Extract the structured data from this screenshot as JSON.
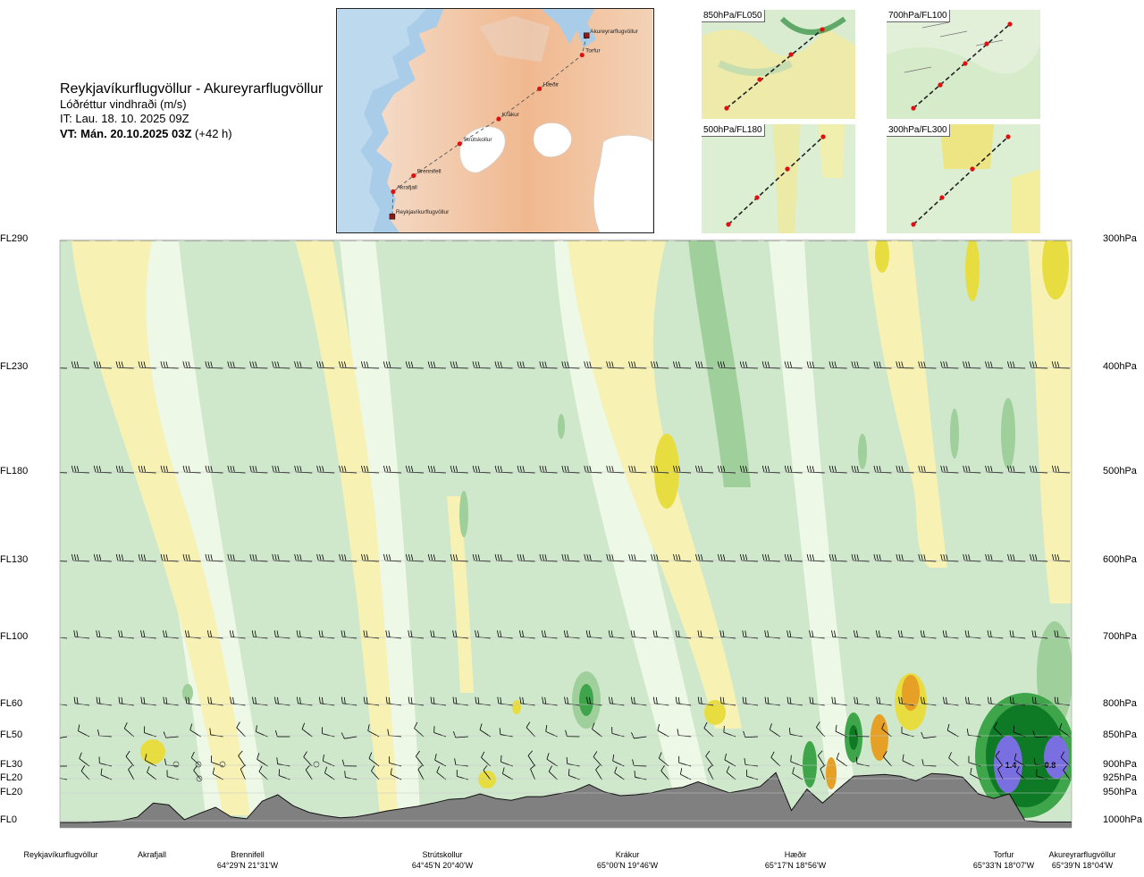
{
  "header": {
    "title": "Reykjavíkurflugvöllur - Akureyrarflugvöllur",
    "subtitle": "Lóðréttur vindhraði (m/s)",
    "issue_time": "IT: Lau. 18. 10. 2025 09Z",
    "valid_time_bold": "VT: Mán. 20.10.2025 03Z",
    "valid_time_offset": "(+42 h)"
  },
  "route_map": {
    "points": [
      {
        "name": "Akureyrarflugvöllur",
        "type": "airport"
      },
      {
        "name": "Torfur",
        "type": "waypoint"
      },
      {
        "name": "Hæðir",
        "type": "waypoint"
      },
      {
        "name": "Krákur",
        "type": "waypoint"
      },
      {
        "name": "Strútskollur",
        "type": "waypoint"
      },
      {
        "name": "Brennifell",
        "type": "waypoint"
      },
      {
        "name": "Akrafjall",
        "type": "waypoint"
      },
      {
        "name": "Reykjavíkurflugvöllur",
        "type": "airport"
      }
    ]
  },
  "thumbnails": [
    {
      "label": "850hPa/FL050"
    },
    {
      "label": "700hPa/FL100"
    },
    {
      "label": "500hPa/FL180"
    },
    {
      "label": "300hPa/FL300"
    }
  ],
  "colors": {
    "sink_strong": "#7a6fe0",
    "sink_dark_green": "#0e7a26",
    "sink_green": "#3fa54a",
    "sink_mid": "#9fcf9a",
    "sink_light": "#cfe8cc",
    "neutral": "#eef8e6",
    "rise_light": "#f7f1b4",
    "rise_yellow": "#e8dd40",
    "rise_orange": "#e5a025",
    "terrain": "#808080"
  },
  "chart_data": {
    "type": "heatmap",
    "title": "Lóðréttur vindhraði (m/s)",
    "y_levels_left": [
      "FL290",
      "FL230",
      "FL180",
      "FL130",
      "FL100",
      "FL60",
      "FL50",
      "FL30",
      "FL20",
      "FL20",
      "FL0"
    ],
    "y_levels_right": [
      "300hPa",
      "400hPa",
      "500hPa",
      "600hPa",
      "700hPa",
      "800hPa",
      "850hPa",
      "900hPa",
      "925hPa",
      "950hPa",
      "1000hPa"
    ],
    "pressure_hpa": [
      300,
      400,
      500,
      600,
      700,
      800,
      850,
      900,
      925,
      950,
      1000
    ],
    "x_stations": [
      {
        "name": "Reykjavíkurflugvöllur",
        "coord": ""
      },
      {
        "name": "Akrafjall",
        "coord": ""
      },
      {
        "name": "Brennifell",
        "coord": "64°29'N 21°31'W"
      },
      {
        "name": "Strútskollur",
        "coord": "64°45'N 20°40'W"
      },
      {
        "name": "Krákur",
        "coord": "65°00'N 19°46'W"
      },
      {
        "name": "Hæðir",
        "coord": "65°17'N 18°56'W"
      },
      {
        "name": "Torfur",
        "coord": "65°33'N 18°07'W"
      },
      {
        "name": "Akureyrarflugvöllur",
        "coord": "65°39'N 18°04'W"
      }
    ],
    "annotations": [
      "1.4",
      "0.8"
    ],
    "terrain_profile_m": [
      0,
      0,
      5,
      20,
      40,
      120,
      420,
      380,
      60,
      200,
      330,
      120,
      80,
      460,
      600,
      360,
      220,
      150,
      100,
      120,
      180,
      250,
      300,
      350,
      420,
      500,
      520,
      620,
      520,
      480,
      560,
      560,
      620,
      680,
      820,
      660,
      580,
      600,
      640,
      720,
      760,
      880,
      760,
      640,
      700,
      780,
      1080,
      260,
      720,
      420,
      720,
      1000,
      1020,
      1040,
      1000,
      900,
      1060,
      1040,
      980,
      620,
      520,
      620,
      40,
      10,
      10,
      10
    ],
    "x_range": [
      0,
      1
    ],
    "legend": "none"
  }
}
